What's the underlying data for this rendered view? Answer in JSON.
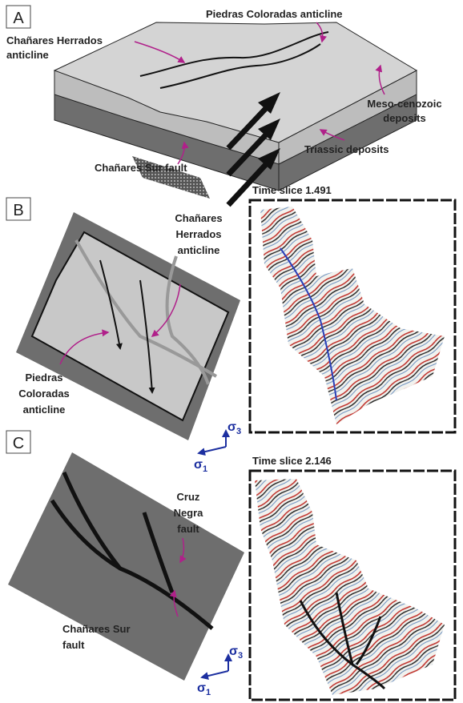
{
  "panels": {
    "a": {
      "label": "A",
      "piedras": "Piedras Coloradas anticline",
      "herrados": [
        "Chañares Herrados",
        "anticline"
      ],
      "meso": [
        "Meso-cenozoic",
        "deposits"
      ],
      "triassic": "Triassic deposits",
      "sur": "Chañares Sur fault"
    },
    "b": {
      "label": "B",
      "time_slice": "Time slice 1.491",
      "herrados": [
        "Chañares",
        "Herrados",
        "anticline"
      ],
      "piedras": [
        "Piedras",
        "Coloradas",
        "anticline"
      ],
      "sigma1": {
        "symbol": "σ",
        "index": "1"
      },
      "sigma3": {
        "symbol": "σ",
        "index": "3"
      }
    },
    "c": {
      "label": "C",
      "time_slice": "Time slice 2.146",
      "cruz": [
        "Cruz",
        "Negra",
        "fault"
      ],
      "sur": [
        "Chañares Sur",
        "fault"
      ],
      "sigma1": {
        "symbol": "σ",
        "index": "1"
      },
      "sigma3": {
        "symbol": "σ",
        "index": "3"
      }
    }
  }
}
